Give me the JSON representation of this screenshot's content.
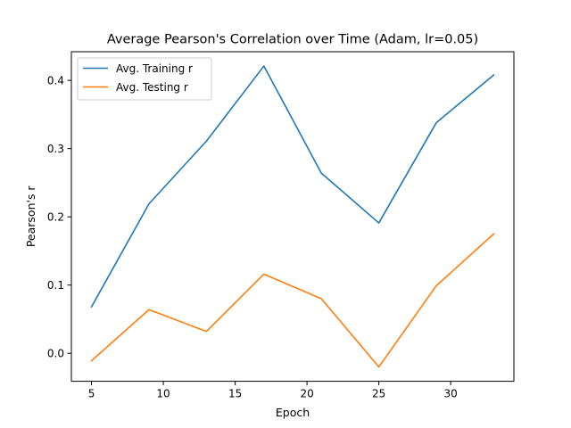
{
  "chart_data": {
    "type": "line",
    "title": "Average Pearson's Correlation over Time (Adam, lr=0.05)",
    "xlabel": "Epoch",
    "ylabel": "Pearson's r",
    "x": [
      5,
      9,
      13,
      17,
      21,
      25,
      29,
      33
    ],
    "xlim": [
      3.6,
      34.4
    ],
    "ylim": [
      -0.041,
      0.442
    ],
    "xticks": [
      5,
      10,
      15,
      20,
      25,
      30
    ],
    "yticks": [
      0.0,
      0.1,
      0.2,
      0.3,
      0.4
    ],
    "xtick_labels": [
      "5",
      "10",
      "15",
      "20",
      "25",
      "30"
    ],
    "ytick_labels": [
      "0.0",
      "0.1",
      "0.2",
      "0.3",
      "0.4"
    ],
    "grid": false,
    "legend_position": "top-left",
    "series": [
      {
        "name": "Avg. Training r",
        "color": "#1f77b4",
        "values": [
          0.068,
          0.219,
          0.311,
          0.421,
          0.264,
          0.191,
          0.338,
          0.408
        ]
      },
      {
        "name": "Avg. Testing r",
        "color": "#ff7f0e",
        "values": [
          -0.011,
          0.064,
          0.032,
          0.116,
          0.08,
          -0.02,
          0.099,
          0.175
        ]
      }
    ]
  }
}
